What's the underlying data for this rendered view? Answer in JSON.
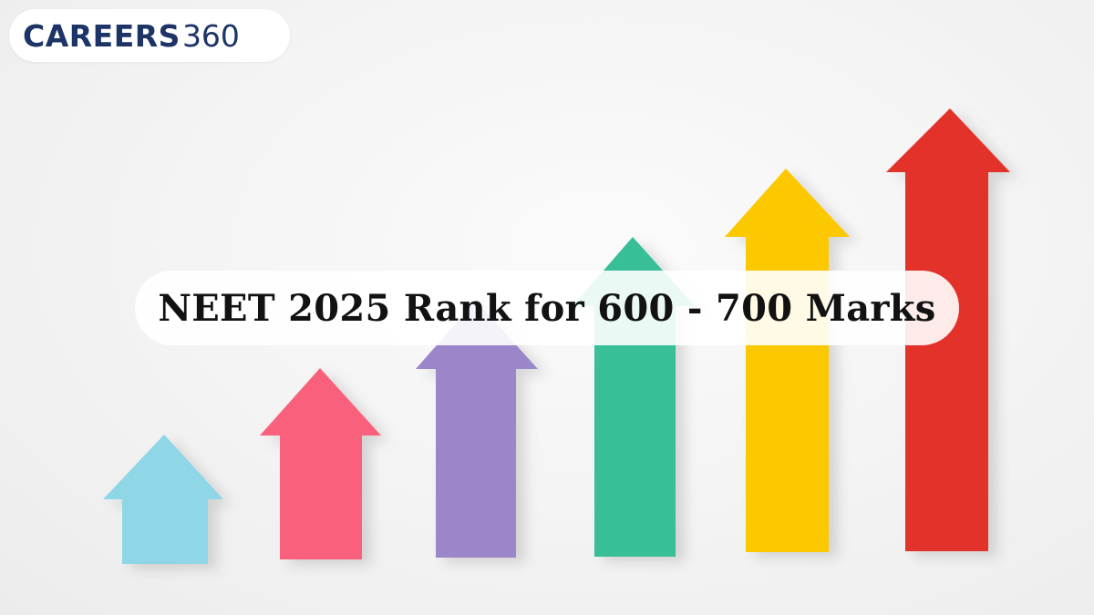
{
  "logo": {
    "brand": "CAREERS",
    "number": "360"
  },
  "headline": {
    "text": "NEET 2025 Rank for 600 - 700 Marks"
  },
  "arrows": [
    {
      "name": "arrow-cyan",
      "color": "#8fd6e6",
      "level": 1
    },
    {
      "name": "arrow-pink",
      "color": "#f9617c",
      "level": 2
    },
    {
      "name": "arrow-purple",
      "color": "#9a86c9",
      "level": 3
    },
    {
      "name": "arrow-green",
      "color": "#39bf98",
      "level": 4
    },
    {
      "name": "arrow-yellow",
      "color": "#fcc800",
      "level": 5
    },
    {
      "name": "arrow-red",
      "color": "#e3302b",
      "level": 6
    }
  ]
}
